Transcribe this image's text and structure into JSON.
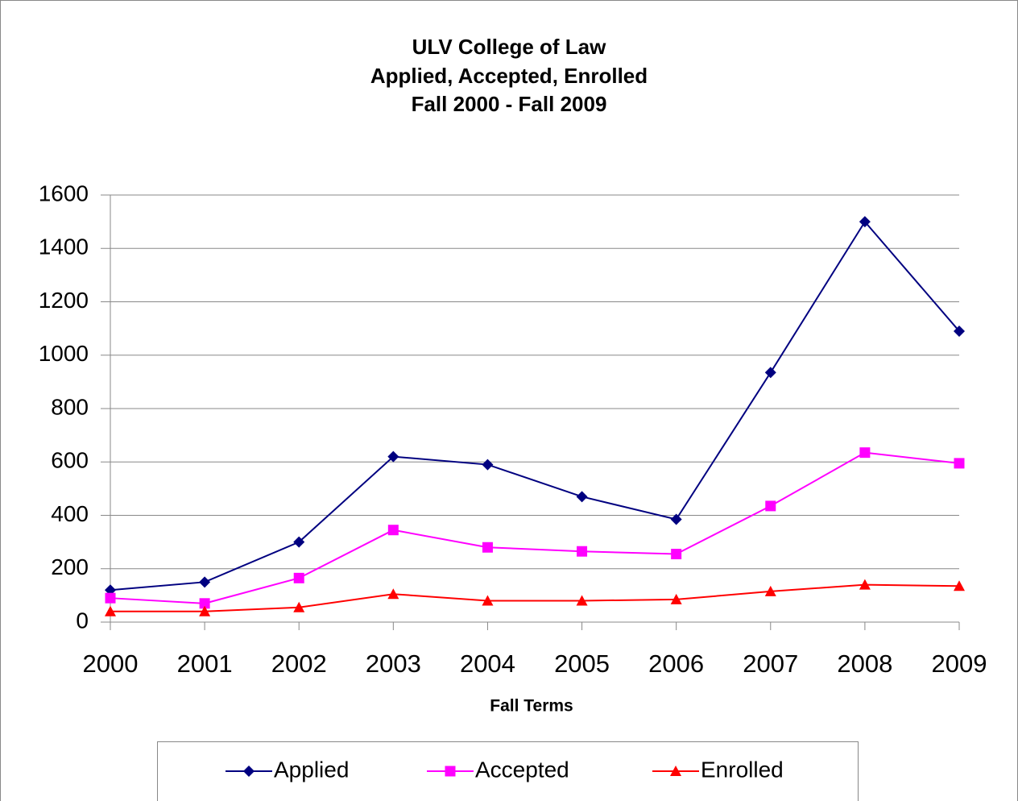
{
  "chart_data": {
    "type": "line",
    "title": [
      "ULV College of Law",
      "Applied, Accepted, Enrolled",
      "Fall 2000 - Fall 2009"
    ],
    "xlabel": "Fall Terms",
    "categories": [
      "2000",
      "2001",
      "2002",
      "2003",
      "2004",
      "2005",
      "2006",
      "2007",
      "2008",
      "2009"
    ],
    "series": [
      {
        "name": "Applied",
        "color": "#000080",
        "marker": "diamond",
        "values": [
          120,
          150,
          300,
          620,
          590,
          470,
          385,
          935,
          1500,
          1090
        ]
      },
      {
        "name": "Accepted",
        "color": "#ff00ff",
        "marker": "square",
        "values": [
          90,
          70,
          165,
          345,
          280,
          265,
          255,
          435,
          635,
          595
        ]
      },
      {
        "name": "Enrolled",
        "color": "#ff0000",
        "marker": "triangle",
        "values": [
          40,
          40,
          55,
          105,
          80,
          80,
          85,
          115,
          140,
          135
        ]
      }
    ],
    "ylim": [
      0,
      1600
    ],
    "yticks": [
      0,
      200,
      400,
      600,
      800,
      1000,
      1200,
      1400,
      1600
    ],
    "grid": true,
    "legend": "bottom"
  }
}
